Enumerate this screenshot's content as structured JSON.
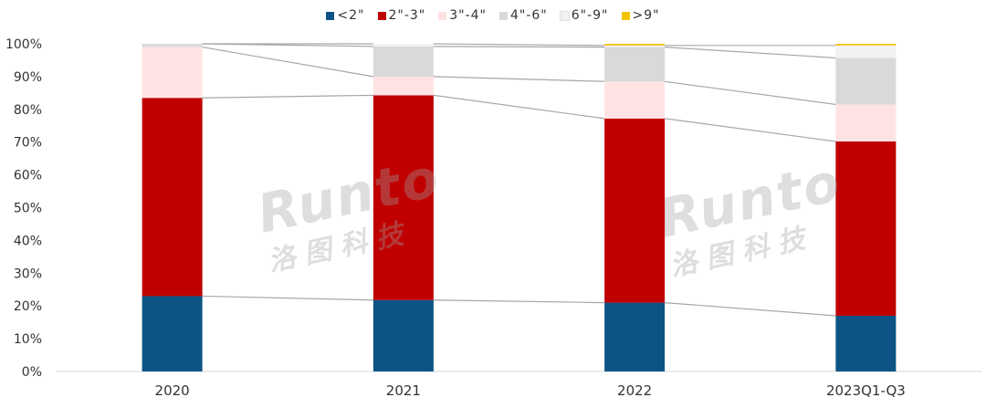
{
  "chart_data": {
    "type": "bar",
    "stacked": true,
    "categories": [
      "2020",
      "2021",
      "2022",
      "2023Q1-Q3"
    ],
    "ylim": [
      0,
      100
    ],
    "yticks": [
      "0%",
      "10%",
      "20%",
      "30%",
      "40%",
      "50%",
      "60%",
      "70%",
      "80%",
      "90%",
      "100%"
    ],
    "legend_position": "top",
    "connector_lines": true,
    "series": [
      {
        "name": "<2\"",
        "color": "#0B5485",
        "values": [
          23.0,
          21.8,
          21.0,
          17.0
        ]
      },
      {
        "name": "2\"-3\"",
        "color": "#C00000",
        "values": [
          60.5,
          62.5,
          56.2,
          53.2
        ]
      },
      {
        "name": "3\"-4\"",
        "color": "#FFE3E3",
        "values": [
          15.5,
          5.7,
          11.3,
          11.3
        ]
      },
      {
        "name": "4\"-6\"",
        "color": "#D9D9D9",
        "values": [
          1.0,
          9.2,
          10.5,
          14.2
        ]
      },
      {
        "name": "6\"-9\"",
        "color": "#F2F2F2",
        "values": [
          0.0,
          0.8,
          0.5,
          3.8
        ]
      },
      {
        "name": ">9\"",
        "color": "#F5C200",
        "values": [
          0.0,
          0.0,
          0.5,
          0.5
        ]
      }
    ]
  },
  "watermark": {
    "brand": "Runto",
    "chinese": "洛图科技"
  }
}
